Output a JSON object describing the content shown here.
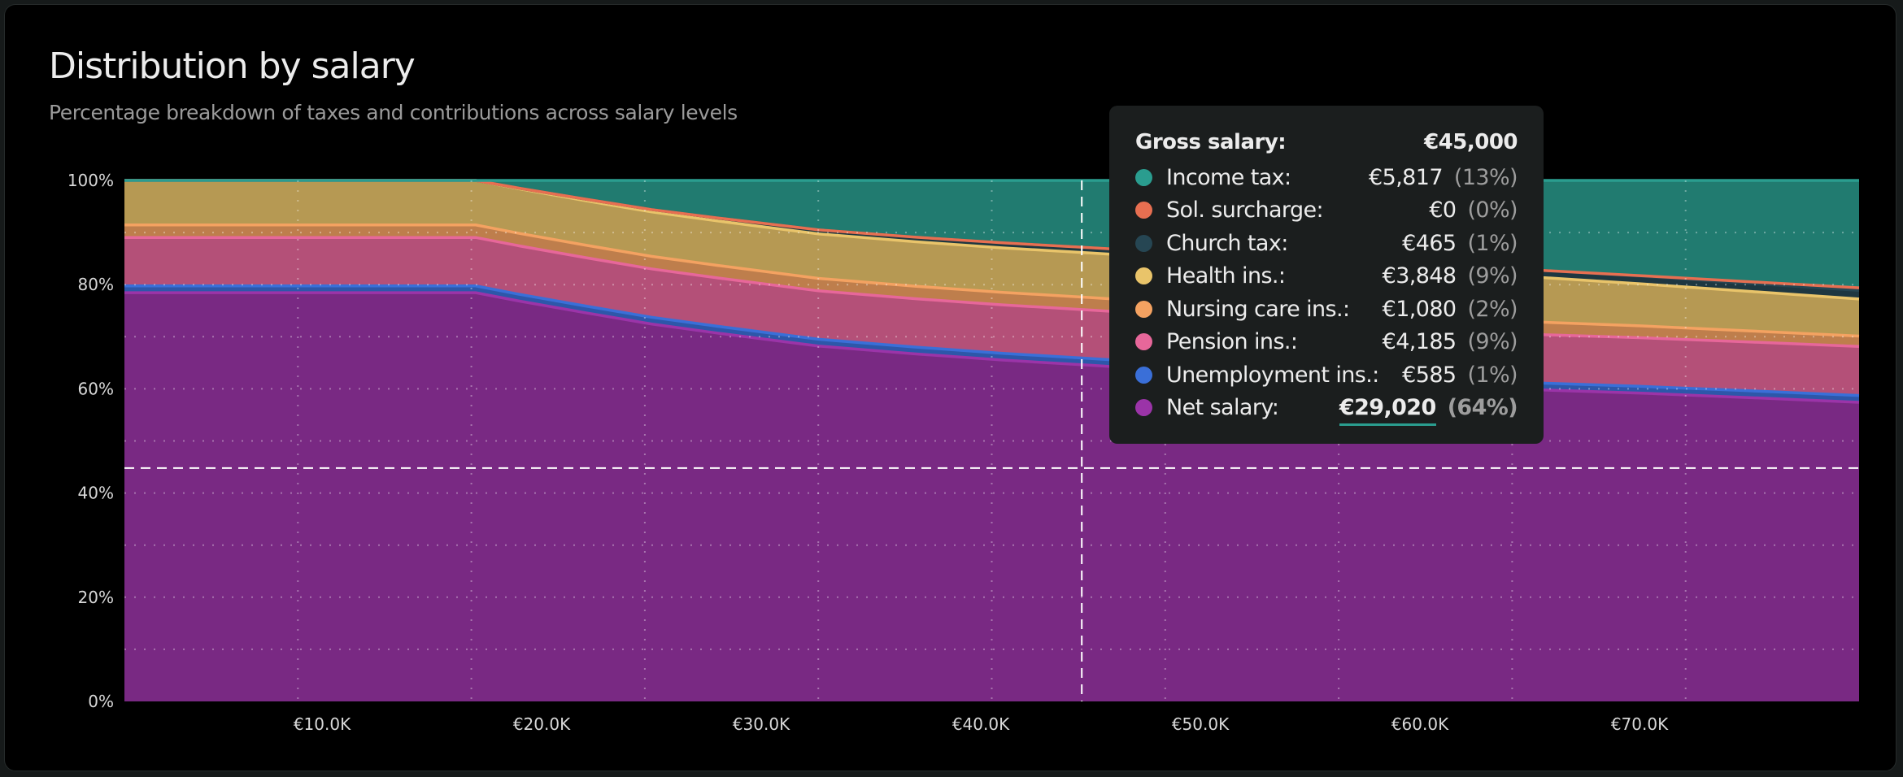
{
  "header": {
    "title": "Distribution by salary",
    "subtitle": "Percentage breakdown of taxes and contributions across salary levels"
  },
  "chart_data": {
    "type": "area",
    "stacked": true,
    "normalized": true,
    "title": "Distribution by salary",
    "subtitle": "Percentage breakdown of taxes and contributions across salary levels",
    "xlabel": "",
    "ylabel": "",
    "x_unit": "EUR thousands (gross salary)",
    "xlim": [
      1,
      80
    ],
    "ylim": [
      0,
      100
    ],
    "y_ticks": [
      "0%",
      "20%",
      "40%",
      "60%",
      "80%",
      "100%"
    ],
    "y_tick_values": [
      0,
      20,
      40,
      60,
      80,
      100
    ],
    "x_ticks": [
      "€10.0K",
      "€20.0K",
      "€30.0K",
      "€40.0K",
      "€50.0K",
      "€60.0K",
      "€70.0K"
    ],
    "x_tick_values": [
      10,
      20,
      30,
      40,
      50,
      60,
      70
    ],
    "grid": true,
    "x": [
      1,
      17,
      19,
      22,
      25,
      28,
      32.6,
      37,
      41,
      45,
      50,
      55,
      60,
      65.7,
      70,
      75,
      80
    ],
    "series": [
      {
        "name": "Net salary",
        "color": "#9b34a8",
        "values": [
          78.45,
          78.45,
          76.83,
          74.7,
          72.56,
          70.8,
          68.29,
          66.78,
          65.59,
          64.52,
          63.22,
          62.03,
          61.06,
          59.77,
          58.98,
          57.88,
          56.84
        ]
      },
      {
        "name": "Unemployment ins.",
        "color": "#3a6fd8",
        "values": [
          1.3,
          1.3,
          1.3,
          1.3,
          1.3,
          1.3,
          1.3,
          1.3,
          1.3,
          1.3,
          1.3,
          1.3,
          1.3,
          1.3,
          1.3,
          1.3,
          1.3
        ]
      },
      {
        "name": "Pension ins.",
        "color": "#e7679a",
        "values": [
          9.3,
          9.3,
          9.3,
          9.3,
          9.3,
          9.3,
          9.3,
          9.3,
          9.3,
          9.3,
          9.3,
          9.3,
          9.3,
          9.3,
          9.3,
          9.3,
          9.3
        ]
      },
      {
        "name": "Nursing care ins.",
        "color": "#f4a261",
        "values": [
          2.4,
          2.4,
          2.4,
          2.4,
          2.4,
          2.4,
          2.4,
          2.4,
          2.4,
          2.4,
          2.4,
          2.4,
          2.4,
          2.4,
          2.26,
          2.11,
          1.98
        ]
      },
      {
        "name": "Health ins.",
        "color": "#e9c46a",
        "values": [
          8.55,
          8.55,
          8.55,
          8.55,
          8.55,
          8.55,
          8.55,
          8.55,
          8.55,
          8.55,
          8.55,
          8.55,
          8.55,
          8.55,
          8.06,
          7.52,
          7.05
        ]
      },
      {
        "name": "Church tax",
        "color": "#264653",
        "values": [
          0,
          0,
          0.12,
          0.29,
          0.45,
          0.58,
          0.76,
          0.87,
          0.96,
          1.03,
          1.13,
          1.22,
          1.29,
          1.38,
          1.46,
          1.54,
          1.63
        ]
      },
      {
        "name": "Sol. surcharge",
        "color": "#e76f51",
        "values": [
          0,
          0,
          0,
          0,
          0,
          0,
          0,
          0,
          0,
          0,
          0,
          0,
          0,
          0,
          0.1,
          0.3,
          0.5
        ]
      },
      {
        "name": "Income tax",
        "color": "#2a9d8f",
        "values": [
          0,
          0,
          1.5,
          3.6,
          5.6,
          7.2,
          9.5,
          10.9,
          12.0,
          12.9,
          14.1,
          15.2,
          16.1,
          17.3,
          18.2,
          19.3,
          20.4
        ]
      }
    ],
    "crosshair": {
      "x": 44.6,
      "y_percent": 44.8
    }
  },
  "tooltip": {
    "gross_label": "Gross salary:",
    "gross_value": "€45,000",
    "rows": [
      {
        "label": "Income tax:",
        "value": "€5,817",
        "pct": "(13%)",
        "color": "#2a9d8f"
      },
      {
        "label": "Sol. surcharge:",
        "value": "€0",
        "pct": "(0%)",
        "color": "#e76f51"
      },
      {
        "label": "Church tax:",
        "value": "€465",
        "pct": "(1%)",
        "color": "#264653"
      },
      {
        "label": "Health ins.:",
        "value": "€3,848",
        "pct": "(9%)",
        "color": "#e9c46a"
      },
      {
        "label": "Nursing care ins.:",
        "value": "€1,080",
        "pct": "(2%)",
        "color": "#f4a261"
      },
      {
        "label": "Pension ins.:",
        "value": "€4,185",
        "pct": "(9%)",
        "color": "#e7679a"
      },
      {
        "label": "Unemployment ins.:",
        "value": "€585",
        "pct": "(1%)",
        "color": "#3a6fd8"
      },
      {
        "label": "Net salary:",
        "value": "€29,020",
        "pct": "(64%)",
        "color": "#9b34a8"
      }
    ]
  }
}
